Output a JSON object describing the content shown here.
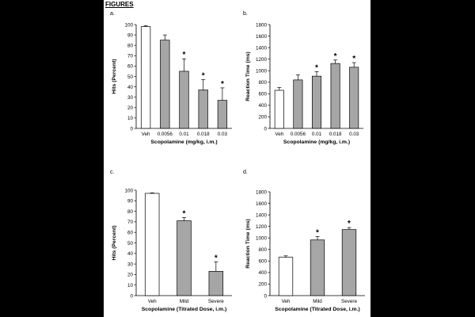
{
  "page": {
    "title": "FIGURES"
  },
  "chart_data": [
    {
      "panel": "a.",
      "type": "bar",
      "categories": [
        "Veh",
        "0.0056",
        "0.01",
        "0.018",
        "0.03"
      ],
      "values": [
        98,
        85,
        55,
        37,
        27
      ],
      "errors": [
        1,
        5,
        12,
        10,
        12
      ],
      "significant": [
        false,
        false,
        true,
        true,
        true
      ],
      "marker": "*",
      "bar_colors": [
        "#ffffff",
        "#a6a6a6",
        "#a6a6a6",
        "#a6a6a6",
        "#a6a6a6"
      ],
      "xlabel": "Scopolamine (mg/kg, i.m.)",
      "ylabel": "Hits (Percent)",
      "ylim": [
        0,
        100
      ],
      "yticks": [
        0,
        10,
        20,
        30,
        40,
        50,
        60,
        70,
        80,
        90,
        100
      ]
    },
    {
      "panel": "b.",
      "type": "bar",
      "categories": [
        "Veh",
        "0.0056",
        "0.01",
        "0.018",
        "0.03"
      ],
      "values": [
        660,
        840,
        905,
        1125,
        1060
      ],
      "errors": [
        50,
        90,
        80,
        60,
        80
      ],
      "significant": [
        false,
        false,
        true,
        true,
        true
      ],
      "marker": "*",
      "bar_colors": [
        "#ffffff",
        "#a6a6a6",
        "#a6a6a6",
        "#a6a6a6",
        "#a6a6a6"
      ],
      "xlabel": "Scopolamine (mg/kg, i.m.)",
      "ylabel": "Reaction Time (ms)",
      "ylim": [
        0,
        1800
      ],
      "yticks": [
        0,
        200,
        400,
        600,
        800,
        1000,
        1200,
        1400,
        1600,
        1800
      ]
    },
    {
      "panel": "c.",
      "type": "bar",
      "categories": [
        "Veh",
        "Mild",
        "Severe"
      ],
      "values": [
        97,
        71,
        23
      ],
      "errors": [
        0.5,
        3,
        9
      ],
      "significant": [
        false,
        true,
        true
      ],
      "marker": "*",
      "bar_colors": [
        "#ffffff",
        "#a6a6a6",
        "#a6a6a6"
      ],
      "xlabel": "Scopolamine (Titrated Dose, i.m.)",
      "ylabel": "Hits (Percent)",
      "ylim": [
        0,
        100
      ],
      "yticks": [
        0,
        10,
        20,
        30,
        40,
        50,
        60,
        70,
        80,
        90,
        100
      ]
    },
    {
      "panel": "d.",
      "type": "bar",
      "categories": [
        "Veh",
        "Mild",
        "Severe"
      ],
      "values": [
        665,
        965,
        1145
      ],
      "errors": [
        25,
        60,
        35
      ],
      "significant": [
        false,
        true,
        true
      ],
      "marker": "*",
      "bar_colors": [
        "#ffffff",
        "#a6a6a6",
        "#a6a6a6"
      ],
      "xlabel": "Scopolamine (Titrated Dose, i.m.)",
      "ylabel": "Reaction Time (ms)",
      "ylim": [
        0,
        1800
      ],
      "yticks": [
        0,
        200,
        400,
        600,
        800,
        1000,
        1200,
        1400,
        1600,
        1800
      ]
    }
  ]
}
